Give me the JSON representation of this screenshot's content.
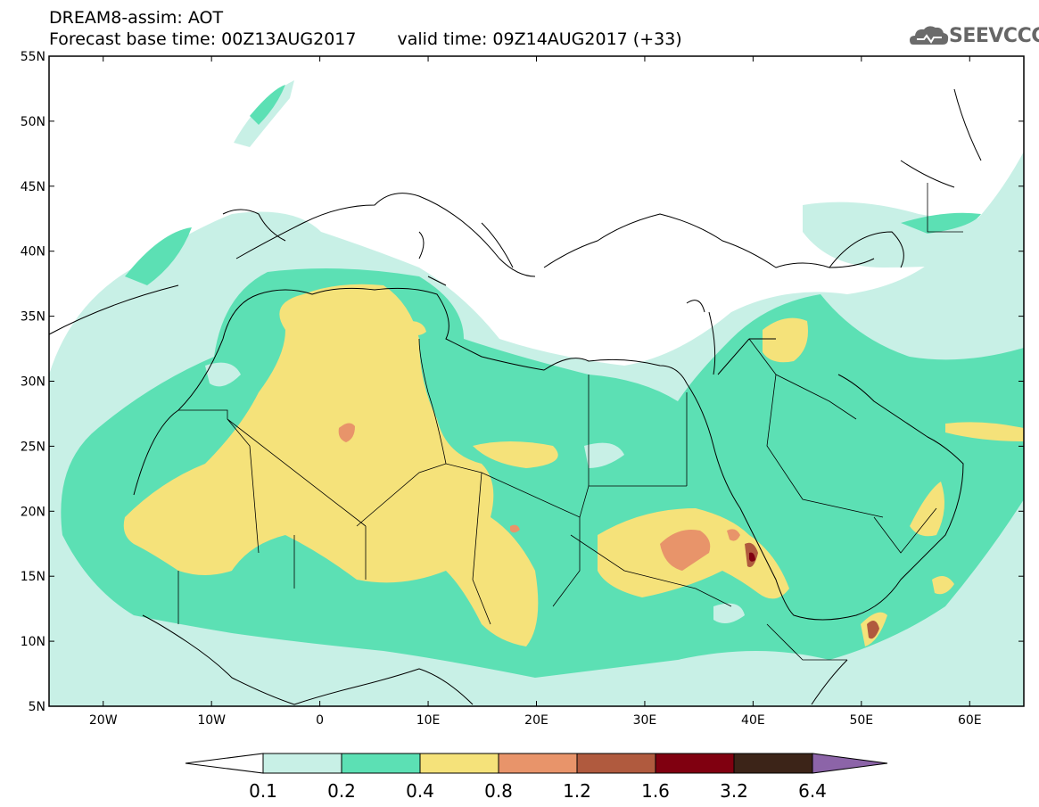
{
  "header": {
    "line1": "DREAM8-assim: AOT",
    "base": "Forecast base time: 00Z13AUG2017",
    "valid": "valid time: 09Z14AUG2017 (+33)"
  },
  "logo": {
    "text": "SEEVCCC",
    "icon": "cloud-icon"
  },
  "map": {
    "lon_range": [
      -25,
      65
    ],
    "lat_range": [
      5,
      55
    ],
    "lat_labels": [
      "55N",
      "50N",
      "45N",
      "40N",
      "35N",
      "30N",
      "25N",
      "20N",
      "15N",
      "10N",
      "5N"
    ],
    "lon_labels": [
      "20W",
      "10W",
      "0",
      "10E",
      "20E",
      "30E",
      "40E",
      "50E",
      "60E"
    ]
  },
  "colorbar": {
    "colors": [
      "#c8f0e6",
      "#5ce0b4",
      "#f5e27a",
      "#e8946a",
      "#b05a3e",
      "#800010",
      "#3c2418",
      "#8c64a8"
    ],
    "labels": [
      "0.1",
      "0.2",
      "0.4",
      "0.8",
      "1.2",
      "1.6",
      "3.2",
      "6.4"
    ]
  }
}
